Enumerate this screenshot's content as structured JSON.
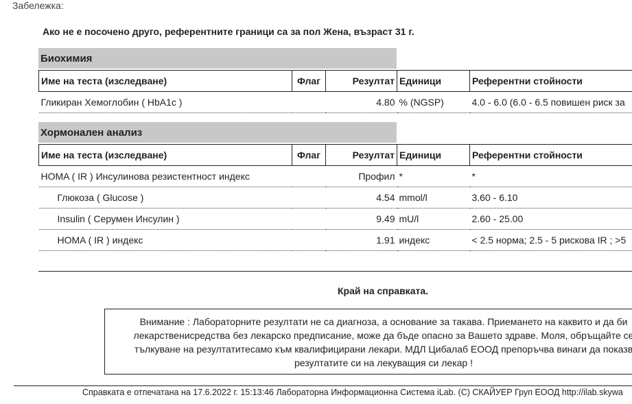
{
  "note_label": "Забележка:",
  "reference_note": "Ако не е посочено друго, референтните граници са за пол Жена, възраст 31 г.",
  "sections": [
    {
      "title": "Биохимия",
      "columns": [
        "Име на теста (изследване)",
        "Флаг",
        "Резултат",
        "Единици",
        "Референтни стойности"
      ],
      "rows": [
        [
          "Гликиран Хемоглобин ( HbA1c )",
          "",
          "4.80",
          "% (NGSP)",
          "4.0 - 6.0 (6.0 - 6.5 повишен риск за"
        ]
      ]
    },
    {
      "title": "Хормонален анализ",
      "columns": [
        "Име на теста (изследване)",
        "Флаг",
        "Резултат",
        "Единици",
        "Референтни стойности"
      ],
      "rows": [
        [
          "HOMA ( IR ) Инсулинова резистентност индекс",
          "",
          "Профил",
          "*",
          "*"
        ],
        [
          "Глюкоза ( Glucose )",
          "",
          "4.54",
          "mmol/l",
          "3.60 - 6.10"
        ],
        [
          "Insulin ( Серумен Инсулин )",
          "",
          "9.49",
          "mU/l",
          "2.60 - 25.00"
        ],
        [
          "HOMA ( IR ) индекс",
          "",
          "1.91",
          "индекс",
          "< 2.5 норма; 2.5 - 5 рискова IR ; >5"
        ]
      ]
    }
  ],
  "end_text": "Край на справката.",
  "disclaimer": [
    "Внимание : Лабораторните резултати не са диагноза, а основание за такава. Приемането на каквито и да би",
    "лекарственисредства без лекарско предписание, може да бъде опасно за Вашето здраве. Моля, обръщайте се",
    "тълкуване на резултатитесамо към квалифицирани лекари. МДЛ Цибалаб ЕООД препоръчва винаги да показв",
    "резултатите си на лекуващия си лекар !"
  ],
  "footer": "Справката е отпечатана на 17.6.2022 г. 15:13:46 Лабораторна Информационна Система iLab. (C) СКАЙУЕР Груп ЕООД http://ilab.skywa"
}
